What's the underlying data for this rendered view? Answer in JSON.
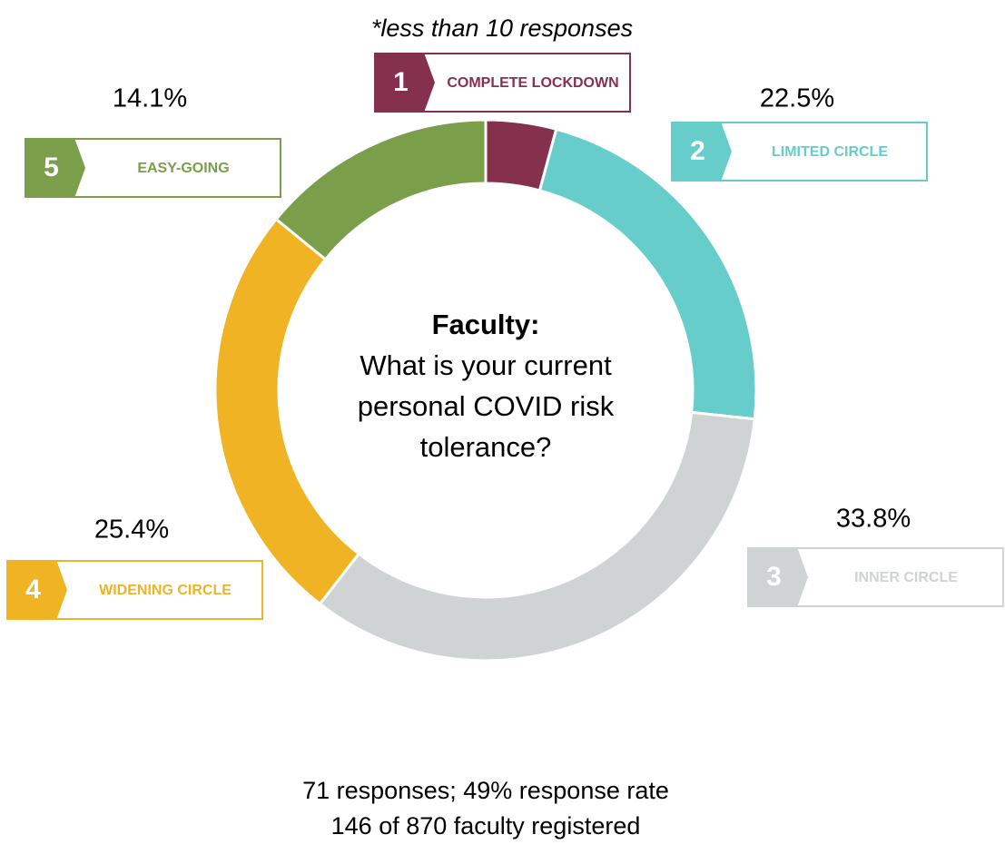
{
  "chart_data": {
    "type": "donut",
    "title": "Faculty:",
    "subtitle": "What is your current personal COVID risk tolerance?",
    "note": "*less than 10 responses",
    "categories": [
      "COMPLETE LOCKDOWN",
      "LIMITED CIRCLE",
      "INNER CIRCLE",
      "WIDENING CIRCLE",
      "EASY-GOING"
    ],
    "badges": [
      1,
      2,
      3,
      4,
      5
    ],
    "values": [
      4.2,
      22.5,
      33.8,
      25.4,
      14.1
    ],
    "value_labels": [
      null,
      "22.5%",
      "33.8%",
      "25.4%",
      "14.1%"
    ],
    "colors": [
      "#85304d",
      "#66cdca",
      "#d0d3d3",
      "#f0b323",
      "#7a9e4a"
    ],
    "footer": [
      "71 responses; 49% response rate",
      "146 of 870 faculty registered"
    ]
  }
}
